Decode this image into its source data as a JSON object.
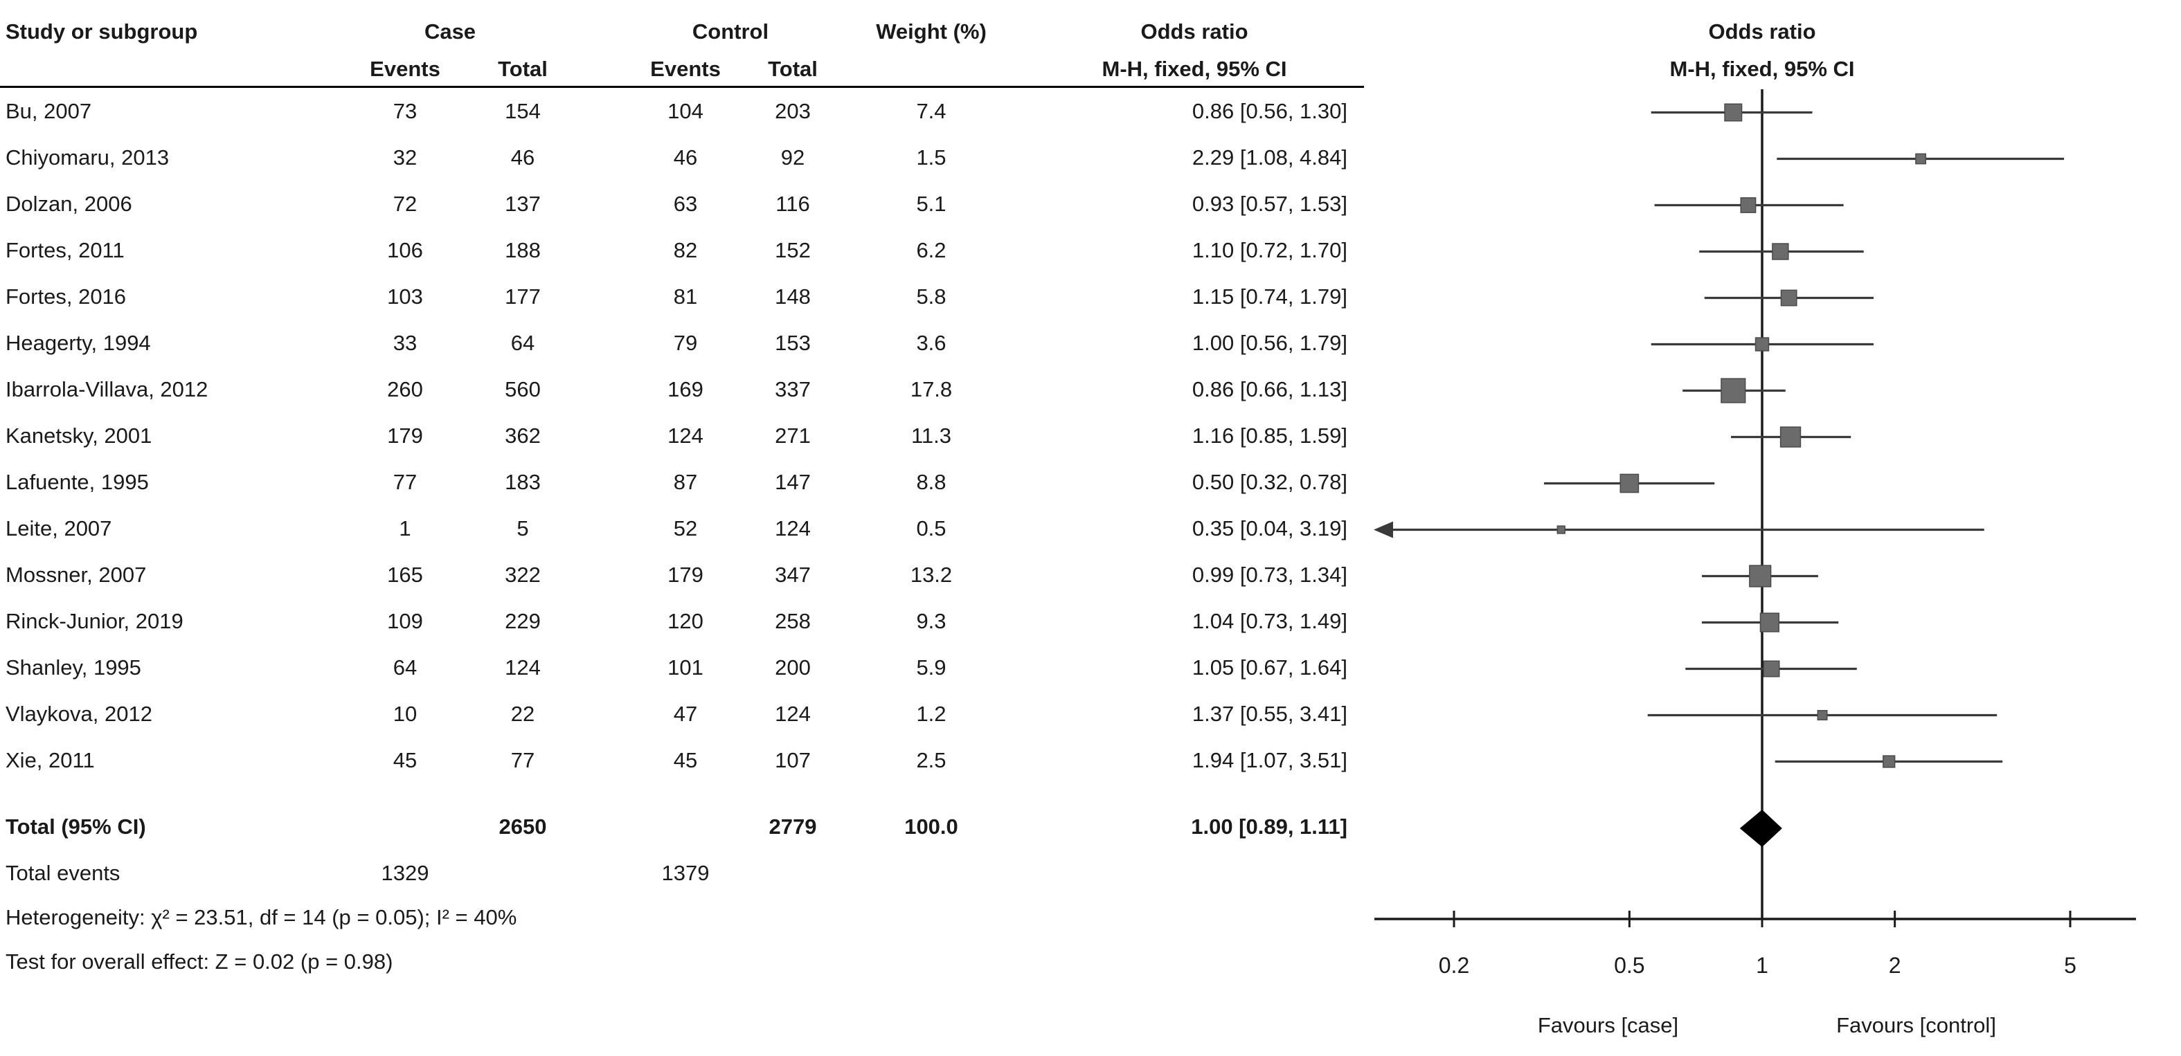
{
  "header": {
    "col_study": "Study or subgroup",
    "col_case": "Case",
    "col_control": "Control",
    "col_weight": "Weight (%)",
    "col_events": "Events",
    "col_total": "Total",
    "col_or": "Odds ratio",
    "col_or_sub": "M-H, fixed, 95% CI",
    "plot_title": "Odds ratio",
    "plot_sub": "M-H, fixed, 95% CI"
  },
  "chart_data": {
    "type": "forest",
    "effect_measure": "Odds ratio, M-H, fixed, 95% CI",
    "axis": {
      "scale": "log",
      "range": [
        0.2,
        5
      ],
      "ticks": [
        "0.2",
        "0.5",
        "1",
        "2",
        "5"
      ],
      "favours_left": "Favours [case]",
      "favours_right": "Favours [control]"
    },
    "colors": {
      "axis": "#1a1a1a",
      "ci": "#3a3a3a",
      "square": "#6b6b6b",
      "square_stroke": "#4a4a4a",
      "diamond": "#000000"
    },
    "studies": [
      {
        "label": "Bu, 2007",
        "case_events": "73",
        "case_total": "154",
        "control_events": "104",
        "control_total": "203",
        "weight": "7.4",
        "or": 0.86,
        "ci_low": 0.56,
        "ci_high": 1.3,
        "or_label": "0.86 [0.56, 1.30]"
      },
      {
        "label": "Chiyomaru, 2013",
        "case_events": "32",
        "case_total": "46",
        "control_events": "46",
        "control_total": "92",
        "weight": "1.5",
        "or": 2.29,
        "ci_low": 1.08,
        "ci_high": 4.84,
        "or_label": "2.29 [1.08, 4.84]"
      },
      {
        "label": "Dolzan, 2006",
        "case_events": "72",
        "case_total": "137",
        "control_events": "63",
        "control_total": "116",
        "weight": "5.1",
        "or": 0.93,
        "ci_low": 0.57,
        "ci_high": 1.53,
        "or_label": "0.93 [0.57, 1.53]"
      },
      {
        "label": "Fortes, 2011",
        "case_events": "106",
        "case_total": "188",
        "control_events": "82",
        "control_total": "152",
        "weight": "6.2",
        "or": 1.1,
        "ci_low": 0.72,
        "ci_high": 1.7,
        "or_label": "1.10 [0.72, 1.70]"
      },
      {
        "label": "Fortes, 2016",
        "case_events": "103",
        "case_total": "177",
        "control_events": "81",
        "control_total": "148",
        "weight": "5.8",
        "or": 1.15,
        "ci_low": 0.74,
        "ci_high": 1.79,
        "or_label": "1.15 [0.74, 1.79]"
      },
      {
        "label": "Heagerty, 1994",
        "case_events": "33",
        "case_total": "64",
        "control_events": "79",
        "control_total": "153",
        "weight": "3.6",
        "or": 1.0,
        "ci_low": 0.56,
        "ci_high": 1.79,
        "or_label": "1.00 [0.56, 1.79]"
      },
      {
        "label": "Ibarrola-Villava, 2012",
        "case_events": "260",
        "case_total": "560",
        "control_events": "169",
        "control_total": "337",
        "weight": "17.8",
        "or": 0.86,
        "ci_low": 0.66,
        "ci_high": 1.13,
        "or_label": "0.86 [0.66, 1.13]"
      },
      {
        "label": "Kanetsky, 2001",
        "case_events": "179",
        "case_total": "362",
        "control_events": "124",
        "control_total": "271",
        "weight": "11.3",
        "or": 1.16,
        "ci_low": 0.85,
        "ci_high": 1.59,
        "or_label": "1.16 [0.85, 1.59]"
      },
      {
        "label": "Lafuente, 1995",
        "case_events": "77",
        "case_total": "183",
        "control_events": "87",
        "control_total": "147",
        "weight": "8.8",
        "or": 0.5,
        "ci_low": 0.32,
        "ci_high": 0.78,
        "or_label": "0.50 [0.32, 0.78]"
      },
      {
        "label": "Leite, 2007",
        "case_events": "1",
        "case_total": "5",
        "control_events": "52",
        "control_total": "124",
        "weight": "0.5",
        "or": 0.35,
        "ci_low": 0.04,
        "ci_high": 3.19,
        "or_label": "0.35 [0.04, 3.19]"
      },
      {
        "label": "Mossner, 2007",
        "case_events": "165",
        "case_total": "322",
        "control_events": "179",
        "control_total": "347",
        "weight": "13.2",
        "or": 0.99,
        "ci_low": 0.73,
        "ci_high": 1.34,
        "or_label": "0.99 [0.73, 1.34]"
      },
      {
        "label": "Rinck-Junior, 2019",
        "case_events": "109",
        "case_total": "229",
        "control_events": "120",
        "control_total": "258",
        "weight": "9.3",
        "or": 1.04,
        "ci_low": 0.73,
        "ci_high": 1.49,
        "or_label": "1.04 [0.73, 1.49]"
      },
      {
        "label": "Shanley, 1995",
        "case_events": "64",
        "case_total": "124",
        "control_events": "101",
        "control_total": "200",
        "weight": "5.9",
        "or": 1.05,
        "ci_low": 0.67,
        "ci_high": 1.64,
        "or_label": "1.05 [0.67, 1.64]"
      },
      {
        "label": "Vlaykova, 2012",
        "case_events": "10",
        "case_total": "22",
        "control_events": "47",
        "control_total": "124",
        "weight": "1.2",
        "or": 1.37,
        "ci_low": 0.55,
        "ci_high": 3.41,
        "or_label": "1.37 [0.55, 3.41]"
      },
      {
        "label": "Xie, 2011",
        "case_events": "45",
        "case_total": "77",
        "control_events": "45",
        "control_total": "107",
        "weight": "2.5",
        "or": 1.94,
        "ci_low": 1.07,
        "ci_high": 3.51,
        "or_label": "1.94 [1.07, 3.51]"
      }
    ],
    "total": {
      "or": 1.0,
      "ci_low": 0.89,
      "ci_high": 1.11
    }
  },
  "footer": {
    "total_label": "Total (95% CI)",
    "total_case": "2650",
    "total_control": "2779",
    "total_weight": "100.0",
    "total_or": "1.00 [0.89, 1.11]",
    "total_events_label": "Total events",
    "total_events_case": "1329",
    "total_events_control": "1379",
    "heterogeneity": "Heterogeneity: χ² = 23.51, df = 14 (p = 0.05); I² = 40%",
    "overall_effect": "Test for overall effect: Z = 0.02 (p = 0.98)"
  }
}
